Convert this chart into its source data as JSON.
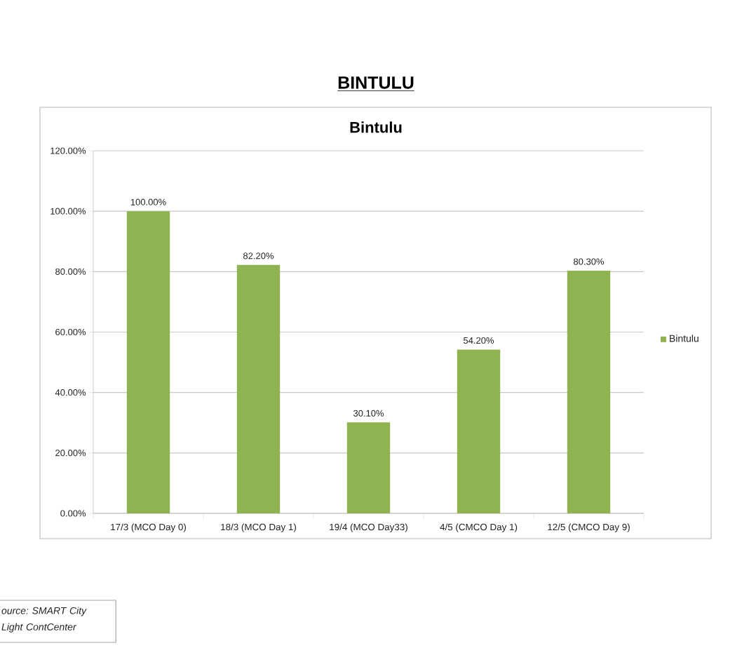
{
  "chart_data": {
    "type": "bar",
    "title": "BINTULU",
    "subtitle": "Bintulu",
    "categories": [
      "17/3 (MCO Day 0)",
      "18/3 (MCO Day 1)",
      "19/4 (MCO Day33)",
      "4/5 (CMCO Day 1)",
      "12/5 (CMCO Day 9)"
    ],
    "series": [
      {
        "name": "Bintulu",
        "color": "#8fb350",
        "values": [
          100,
          82.2,
          30.1,
          54.2,
          80.3
        ],
        "value_labels": [
          "100.00%",
          "82.20%",
          "30.10%",
          "54.20%",
          "80.30%"
        ]
      }
    ],
    "ylim": [
      0,
      120
    ],
    "yticks": [
      {
        "value": 0,
        "label": "0.00%"
      },
      {
        "value": 20,
        "label": "20.00%"
      },
      {
        "value": 40,
        "label": "40.00%"
      },
      {
        "value": 60,
        "label": "60.00%"
      },
      {
        "value": 80,
        "label": "80.00%"
      },
      {
        "value": 100,
        "label": "100.00%"
      },
      {
        "value": 120,
        "label": "120.00%"
      }
    ],
    "grid": "y",
    "legend": "right",
    "annotations": [
      "ource: SMART City Light ContCenter"
    ]
  }
}
